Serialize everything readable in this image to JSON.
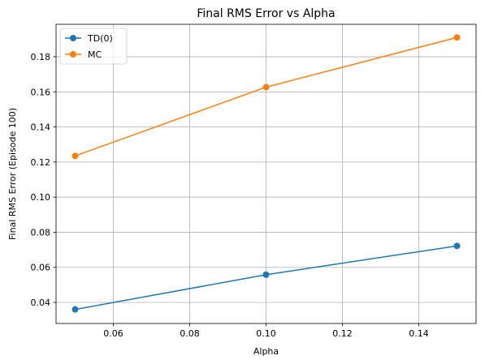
{
  "chart_data": {
    "type": "line",
    "title": "Final RMS Error vs Alpha",
    "xlabel": "Alpha",
    "ylabel": "Final RMS Error (Episode 100)",
    "x": [
      0.05,
      0.1,
      0.15
    ],
    "xlim": [
      0.045,
      0.155
    ],
    "ylim": [
      0.028,
      0.1985
    ],
    "xticks": [
      "0.06",
      "0.08",
      "0.10",
      "0.12",
      "0.14"
    ],
    "yticks": [
      "0.04",
      "0.06",
      "0.08",
      "0.10",
      "0.12",
      "0.14",
      "0.16",
      "0.18"
    ],
    "grid": true,
    "legend_position": "top-left",
    "series": [
      {
        "name": "TD(0)",
        "values": [
          0.036,
          0.0558,
          0.0722
        ],
        "color": "#1f77b4"
      },
      {
        "name": "MC",
        "values": [
          0.1235,
          0.1627,
          0.191
        ],
        "color": "#ff7f0e"
      }
    ]
  }
}
